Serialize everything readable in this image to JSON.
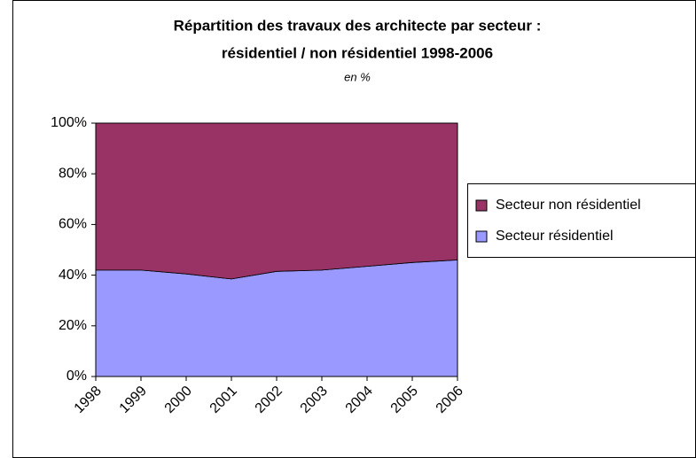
{
  "chart_data": {
    "type": "stacked-area",
    "title": [
      "Répartition des travaux des architecte par secteur :",
      "résidentiel / non résidentiel 1998-2006"
    ],
    "subtitle": "en %",
    "categories": [
      "1998",
      "1999",
      "2000",
      "2001",
      "2002",
      "2003",
      "2004",
      "2005",
      "2006"
    ],
    "series": [
      {
        "name": "Secteur résidentiel",
        "color": "#9999ff",
        "values": [
          42,
          42,
          40.5,
          38.5,
          41.5,
          42,
          43.5,
          45,
          46
        ]
      },
      {
        "name": "Secteur non résidentiel",
        "color": "#993366",
        "values": [
          58,
          58,
          59.5,
          61.5,
          58.5,
          58,
          56.5,
          55,
          54
        ]
      }
    ],
    "ylim": [
      0,
      100
    ],
    "yticks": [
      {
        "value": 0,
        "label": "0%"
      },
      {
        "value": 20,
        "label": "20%"
      },
      {
        "value": 40,
        "label": "40%"
      },
      {
        "value": 60,
        "label": "60%"
      },
      {
        "value": 80,
        "label": "80%"
      },
      {
        "value": 100,
        "label": "100%"
      }
    ],
    "legend": "right"
  }
}
